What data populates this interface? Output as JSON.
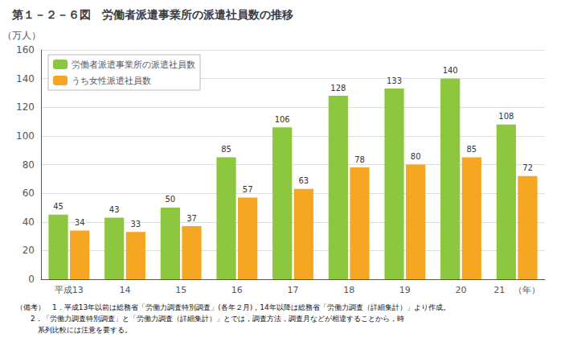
{
  "chart_data": {
    "type": "bar",
    "title": "第１－２－６図　労働者派遣事業所の派遣社員数の推移",
    "ylabel": "（万人）",
    "categories": [
      "平成13",
      "14",
      "15",
      "16",
      "17",
      "18",
      "19",
      "20",
      "21　（年）"
    ],
    "series": [
      {
        "name": "労働者派遣事業所の派遣社員数",
        "color": "#8DC63F",
        "values": [
          45,
          43,
          50,
          85,
          106,
          128,
          133,
          140,
          108
        ]
      },
      {
        "name": "うち女性派遣社員数",
        "color": "#F5A623",
        "values": [
          34,
          33,
          37,
          57,
          63,
          78,
          80,
          85,
          72
        ]
      }
    ],
    "ylim": [
      0,
      160
    ],
    "yticks": [
      0,
      20,
      40,
      60,
      80,
      100,
      120,
      140,
      160
    ],
    "grid": true,
    "legend": "upper left",
    "data_labels": true,
    "annotations": [
      "（備考）　1．平成13年以前は総務省「労働力調査特別調査」(各年２月)，14年以降は総務省「労働力調査（詳細集計）」より作成。",
      "　　2．「労働力調査特別調査」と「労働力調査（詳細集計）」とでは，調査方法，調査月などが相違することから，時",
      "　　　系列比較には注意を要する。"
    ]
  }
}
